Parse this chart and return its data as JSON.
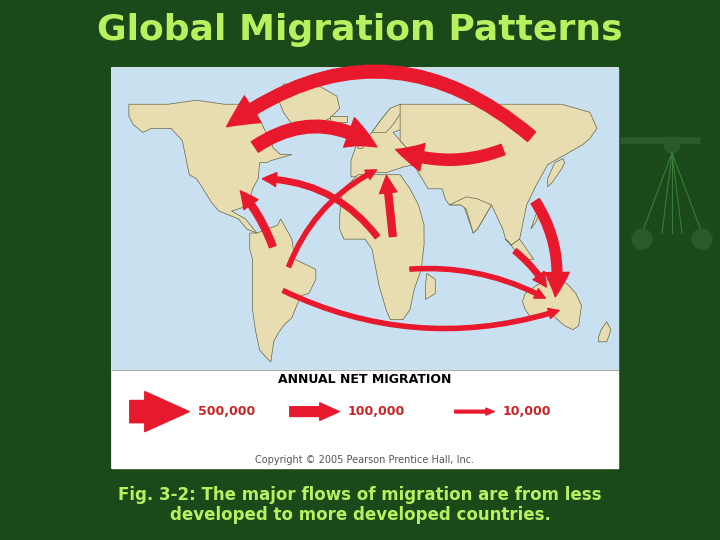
{
  "title": "Global Migration Patterns",
  "title_color": "#b8f060",
  "title_fontsize": 26,
  "bg_color_top": "#0a3a0a",
  "bg_color": "#1a4a1a",
  "fig_caption": "Fig. 3-2: The major flows of migration are from less\ndeveloped to more developed countries.",
  "caption_color": "#b8f060",
  "caption_fontsize": 12,
  "legend_title": "ANNUAL NET MIGRATION",
  "legend_arrow_color": "#e8192c",
  "map_bg": "#ffffff",
  "ocean_bg": "#c8e0f0",
  "land_color": "#e8ddb0",
  "border_color": "#666644",
  "arrow_color": "#e8192c",
  "copyright_text": "Copyright © 2005 Pearson Prentice Hall, Inc.",
  "copyright_fontsize": 7
}
